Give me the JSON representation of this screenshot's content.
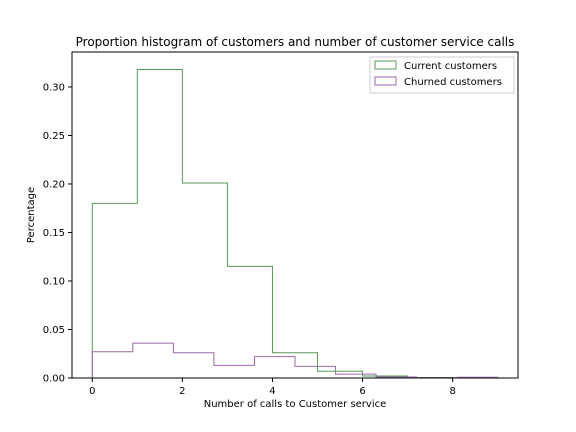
{
  "chart_data": {
    "type": "step-histogram",
    "title": "Proportion histogram of customers and number of customer service calls",
    "xlabel": "Number of calls to Customer service",
    "ylabel": "Percentage",
    "xlim": [
      -0.45,
      9.45
    ],
    "ylim": [
      0,
      0.336
    ],
    "xticks": [
      0,
      2,
      4,
      6,
      8
    ],
    "yticks": [
      0.0,
      0.05,
      0.1,
      0.15,
      0.2,
      0.25,
      0.3
    ],
    "ytick_labels": [
      "0.00",
      "0.05",
      "0.10",
      "0.15",
      "0.20",
      "0.25",
      "0.30"
    ],
    "legend_position": "upper right",
    "series": [
      {
        "name": "Current customers",
        "color": "#5a9a5a",
        "bin_edges": [
          0,
          1,
          2,
          3,
          4,
          5,
          6,
          7,
          8,
          9
        ],
        "values": [
          0.18,
          0.318,
          0.201,
          0.115,
          0.026,
          0.007,
          0.002,
          0.0005,
          0.0
        ]
      },
      {
        "name": "Churned customers",
        "color": "#9a6aa8",
        "bin_edges": [
          0,
          0.9,
          1.8,
          2.7,
          3.6,
          4.5,
          5.4,
          6.3,
          7.2,
          8.1,
          9.0
        ],
        "values": [
          0.027,
          0.036,
          0.026,
          0.013,
          0.022,
          0.012,
          0.004,
          0.001,
          0.0002,
          0.0008
        ]
      }
    ]
  }
}
